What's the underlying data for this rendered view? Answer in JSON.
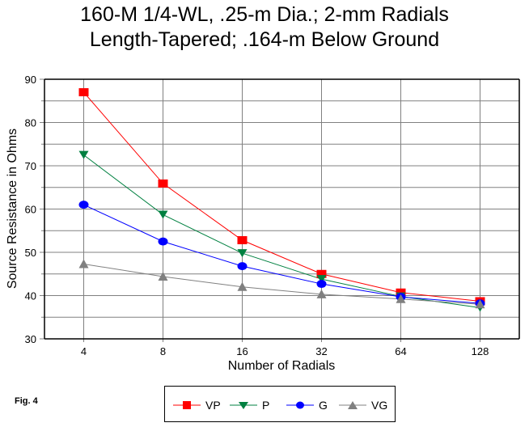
{
  "chart_data": {
    "type": "line",
    "title": [
      "160-M 1/4-WL, .25-m Dia.; 2-mm Radials",
      "Length-Tapered; .164-m Below Ground"
    ],
    "xlabel": "Number of Radials",
    "ylabel": "Source Resistance in Ohms",
    "categories": [
      "4",
      "8",
      "16",
      "32",
      "64",
      "128"
    ],
    "ylim": [
      30,
      90
    ],
    "yticks": [
      30,
      40,
      50,
      60,
      70,
      80,
      90
    ],
    "grid": true,
    "legend_position": "bottom",
    "series": [
      {
        "name": "VP",
        "color": "#ff0000",
        "marker": "square",
        "values": [
          87.0,
          65.9,
          52.8,
          45.0,
          40.7,
          38.7
        ]
      },
      {
        "name": "P",
        "color": "#008040",
        "marker": "triangle-down",
        "values": [
          72.5,
          58.7,
          49.8,
          43.8,
          39.8,
          37.2
        ]
      },
      {
        "name": "G",
        "color": "#0000ff",
        "marker": "circle",
        "values": [
          61.0,
          52.5,
          46.8,
          42.7,
          39.7,
          38.2
        ]
      },
      {
        "name": "VG",
        "color": "#808080",
        "marker": "triangle-up",
        "values": [
          47.3,
          44.4,
          42.0,
          40.3,
          39.2,
          38.0
        ]
      }
    ]
  },
  "figure_label": "Fig. 4"
}
